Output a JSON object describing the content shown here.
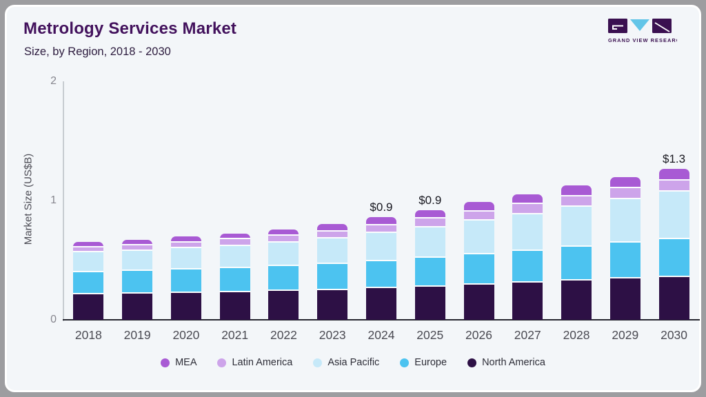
{
  "header": {
    "title": "Metrology Services Market",
    "subtitle": "Size, by Region, 2018 - 2030"
  },
  "logo": {
    "name": "grand-view-research-logo",
    "text": "GRAND VIEW RESEARCH",
    "block_color": "#3a1050",
    "triangle_color": "#62c5e8"
  },
  "chart_data": {
    "type": "bar",
    "stacked": true,
    "title": "Metrology Services Market",
    "subtitle": "Size, by Region, 2018 - 2030",
    "ylabel": "Market Size (US$B)",
    "xlabel": "",
    "ylim": [
      0,
      2
    ],
    "yticks": [
      0,
      1,
      2
    ],
    "grid": false,
    "legend_position": "bottom",
    "categories": [
      "2018",
      "2019",
      "2020",
      "2021",
      "2022",
      "2023",
      "2024",
      "2025",
      "2026",
      "2027",
      "2028",
      "2029",
      "2030"
    ],
    "series": [
      {
        "name": "North America",
        "color": "#2d1045",
        "values": [
          0.215,
          0.22,
          0.226,
          0.233,
          0.24,
          0.25,
          0.265,
          0.28,
          0.296,
          0.312,
          0.327,
          0.345,
          0.36
        ]
      },
      {
        "name": "Europe",
        "color": "#4cc3f0",
        "values": [
          0.185,
          0.19,
          0.197,
          0.203,
          0.21,
          0.218,
          0.228,
          0.24,
          0.253,
          0.267,
          0.283,
          0.3,
          0.318
        ]
      },
      {
        "name": "Asia Pacific",
        "color": "#c6e9f9",
        "values": [
          0.165,
          0.17,
          0.177,
          0.185,
          0.197,
          0.213,
          0.235,
          0.257,
          0.282,
          0.307,
          0.337,
          0.368,
          0.395
        ]
      },
      {
        "name": "Latin America",
        "color": "#cda4ea",
        "values": [
          0.044,
          0.047,
          0.05,
          0.053,
          0.057,
          0.061,
          0.066,
          0.072,
          0.078,
          0.084,
          0.09,
          0.092,
          0.094
        ]
      },
      {
        "name": "MEA",
        "color": "#a85ad4",
        "values": [
          0.042,
          0.045,
          0.048,
          0.051,
          0.055,
          0.06,
          0.065,
          0.071,
          0.077,
          0.083,
          0.089,
          0.094,
          0.1
        ]
      }
    ],
    "totals": [
      0.65,
      0.67,
      0.7,
      0.72,
      0.76,
      0.8,
      0.86,
      0.92,
      0.99,
      1.05,
      1.13,
      1.2,
      1.27
    ],
    "bar_labels": {
      "2024": "$0.9",
      "2025": "$0.9",
      "2030": "$1.3"
    }
  }
}
